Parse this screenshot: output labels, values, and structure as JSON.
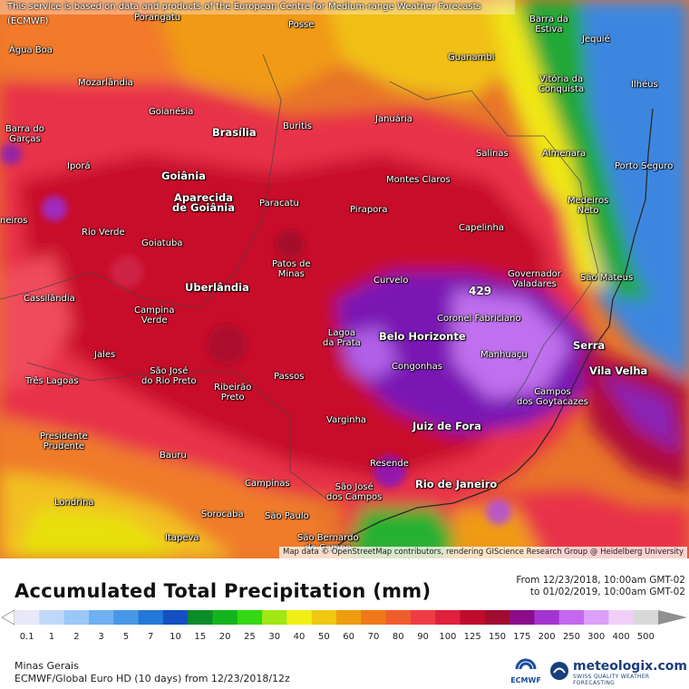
{
  "disclaimer": "This service is based on data and products of the European Centre for Medium-range Weather Forecasts (ECMWF)",
  "map_attribution": "Map data © OpenStreetMap contributors, rendering GIScience Research Group @ Heidelberg University",
  "title": "Accumulated Total Precipitation (mm)",
  "date_from": "From 12/23/2018, 10:00am GMT-02",
  "date_to": "to 01/02/2019, 10:00am GMT-02",
  "region": "Minas Gerais",
  "model": "ECMWF/Global Euro HD (10 days) from 12/23/2018/12z",
  "logo_ecmwf": "ECMWF",
  "logo_brand": "meteologix.com",
  "logo_tagline": "SWISS QUALITY WEATHER FORECASTING",
  "peak_value": "429",
  "legend": {
    "levels": [
      "0.1",
      "1",
      "2",
      "3",
      "5",
      "7",
      "10",
      "15",
      "20",
      "25",
      "30",
      "40",
      "50",
      "60",
      "70",
      "80",
      "90",
      "100",
      "125",
      "150",
      "175",
      "200",
      "250",
      "300",
      "400",
      "500"
    ],
    "colors": [
      "#e8e8f8",
      "#c0d8f8",
      "#9cc8f8",
      "#70b0f0",
      "#4898e8",
      "#2478d8",
      "#1450c0",
      "#0c8c28",
      "#14b41c",
      "#34d814",
      "#a0e814",
      "#f0f014",
      "#f0c810",
      "#f09c10",
      "#f07818",
      "#f05c2c",
      "#f03c44",
      "#e0203c",
      "#c00c2c",
      "#a00c30",
      "#8c0c8c",
      "#a434d0",
      "#c468f0",
      "#dca0f8",
      "#f0d0f8",
      "#d8d8d8"
    ]
  },
  "cities": [
    {
      "name": "Porangatu"
    },
    {
      "name": "Posse"
    },
    {
      "name": "Barra da\nEstiva"
    },
    {
      "name": "Água Boa"
    },
    {
      "name": "Guanambi"
    },
    {
      "name": "Jequié"
    },
    {
      "name": "Mozarlândia"
    },
    {
      "name": "Vitória da\nConquista"
    },
    {
      "name": "Ilhéus"
    },
    {
      "name": "Goianésia"
    },
    {
      "name": "Buritis"
    },
    {
      "name": "Januária"
    },
    {
      "name": "Barra do\nGarças"
    },
    {
      "name": "Brasília"
    },
    {
      "name": "Salinas"
    },
    {
      "name": "Almenara"
    },
    {
      "name": "Iporá"
    },
    {
      "name": "Goiânia"
    },
    {
      "name": "Montes Claros"
    },
    {
      "name": "Porto Seguro"
    },
    {
      "name": "Aparecida\nde Goiânia"
    },
    {
      "name": "Paracatu"
    },
    {
      "name": "Pirapora"
    },
    {
      "name": "Medeiros\nNeto"
    },
    {
      "name": "neiros"
    },
    {
      "name": "Rio Verde"
    },
    {
      "name": "Capelinha"
    },
    {
      "name": "Goiatuba"
    },
    {
      "name": "Patos de\nMinas"
    },
    {
      "name": "Governador\nValadares"
    },
    {
      "name": "São Mateus"
    },
    {
      "name": "Cassilândia"
    },
    {
      "name": "Uberlândia"
    },
    {
      "name": "Curvelo"
    },
    {
      "name": "Campina\nVerde"
    },
    {
      "name": "Coronel Fabriciano"
    },
    {
      "name": "Lagoa\nda Prata"
    },
    {
      "name": "Belo Horizonte"
    },
    {
      "name": "Serra"
    },
    {
      "name": "Jales"
    },
    {
      "name": "Manhuaçu"
    },
    {
      "name": "Vila Velha"
    },
    {
      "name": "Três Lagoas"
    },
    {
      "name": "São José\ndo Rio Preto"
    },
    {
      "name": "Congonhas"
    },
    {
      "name": "Passos"
    },
    {
      "name": "Ribeirão\nPreto"
    },
    {
      "name": "Campos\ndos Goytacazes"
    },
    {
      "name": "Varginha"
    },
    {
      "name": "Juiz de Fora"
    },
    {
      "name": "Presidente\nPrudente"
    },
    {
      "name": "Bauru"
    },
    {
      "name": "Resende"
    },
    {
      "name": "Campinas"
    },
    {
      "name": "São José\ndos Campos"
    },
    {
      "name": "Rio de Janeiro"
    },
    {
      "name": "Londrina"
    },
    {
      "name": "Sorocaba"
    },
    {
      "name": "São Paulo"
    },
    {
      "name": "Itapeva"
    },
    {
      "name": "São Bernardo\ndo Campo"
    }
  ]
}
